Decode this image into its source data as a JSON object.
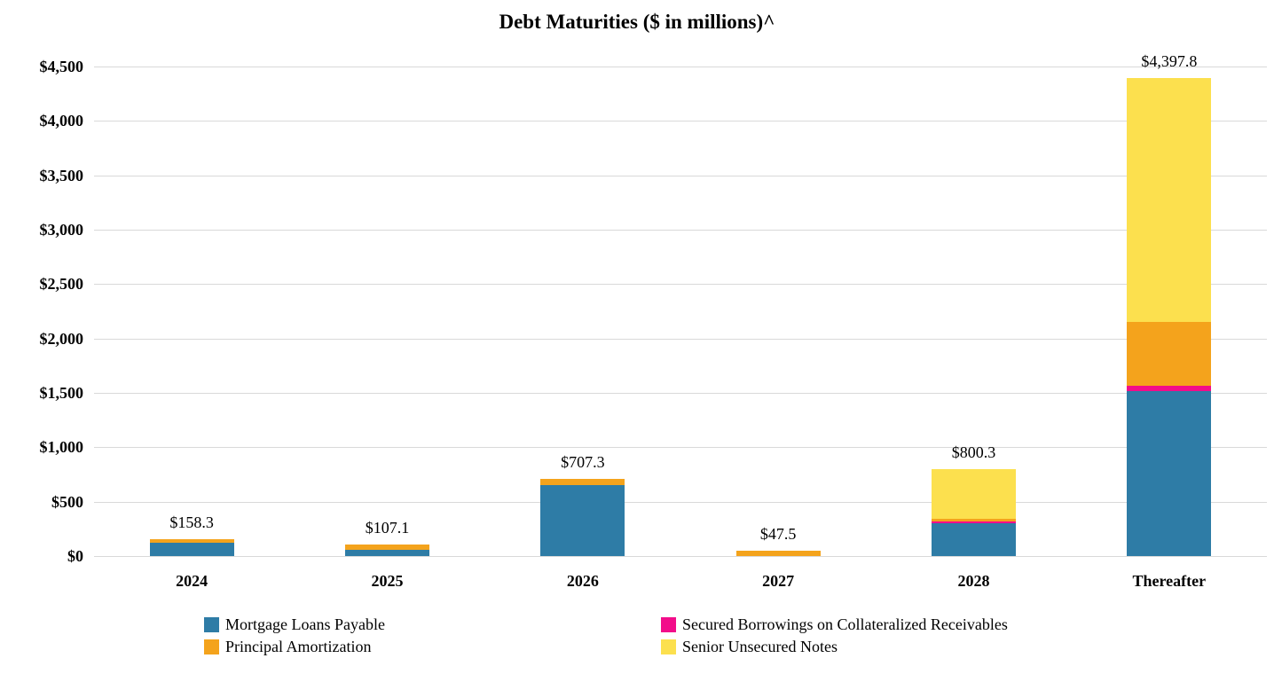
{
  "title": "Debt Maturities ($ in millions)^",
  "chart_data": {
    "type": "bar",
    "stacked": true,
    "title": "Debt Maturities ($ in millions)^",
    "categories": [
      "2024",
      "2025",
      "2026",
      "2027",
      "2028",
      "Thereafter"
    ],
    "series": [
      {
        "name": "Mortgage Loans Payable",
        "color": "#2E7CA6",
        "values": [
          125.0,
          55.0,
          655.0,
          0,
          305.0,
          1520.0
        ]
      },
      {
        "name": "Secured Borrowings on Collateralized Receivables",
        "color": "#F20D8A",
        "values": [
          0,
          0,
          0,
          0,
          10.0,
          45.0
        ]
      },
      {
        "name": "Principal Amortization",
        "color": "#F4A31C",
        "values": [
          33.3,
          52.1,
          52.3,
          47.5,
          25.0,
          585.0
        ]
      },
      {
        "name": "Senior Unsecured Notes",
        "color": "#FCE04E",
        "values": [
          0,
          0,
          0,
          0,
          460.3,
          2247.8
        ]
      }
    ],
    "totals": [
      158.3,
      107.1,
      707.3,
      47.5,
      800.3,
      4397.8
    ],
    "totals_labels": [
      "$158.3",
      "$107.1",
      "$707.3",
      "$47.5",
      "$800.3",
      "$4,397.8"
    ],
    "ylim": [
      0,
      4500
    ],
    "ytick_step": 500,
    "yticks": [
      "$0",
      "$500",
      "$1,000",
      "$1,500",
      "$2,000",
      "$2,500",
      "$3,000",
      "$3,500",
      "$4,000",
      "$4,500"
    ],
    "grid": true,
    "legend_position": "bottom"
  },
  "legend": {
    "columns": [
      [
        {
          "label": "Mortgage Loans Payable",
          "color": "#2E7CA6"
        },
        {
          "label": "Principal Amortization",
          "color": "#F4A31C"
        }
      ],
      [
        {
          "label": "Secured Borrowings on Collateralized Receivables",
          "color": "#F20D8A"
        },
        {
          "label": "Senior Unsecured Notes",
          "color": "#FCE04E"
        }
      ]
    ]
  }
}
